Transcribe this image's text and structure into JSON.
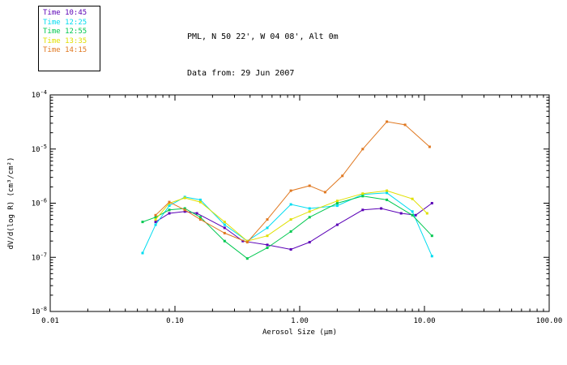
{
  "header": {
    "title_line1": "PML, N 50 22', W 04 08', Alt 0m",
    "title_line2": "Data from: 29 Jun 2007"
  },
  "legend": {
    "items": [
      {
        "label": "Time 10:45",
        "color": "#5a00b6"
      },
      {
        "label": "Time 12:25",
        "color": "#00dcf0"
      },
      {
        "label": "Time 12:55",
        "color": "#00c850"
      },
      {
        "label": "Time 13:35",
        "color": "#e0e000"
      },
      {
        "label": "Time 14:15",
        "color": "#e07820"
      }
    ]
  },
  "chart_data": {
    "type": "line",
    "title": "PML, N 50 22', W 04 08', Alt 0m",
    "subtitle": "Data from: 29 Jun 2007",
    "xlabel": "Aerosol Size (μm)",
    "ylabel": "dV/d(log R) (cm³/cm²)",
    "x_scale": "log",
    "y_scale": "log",
    "xlim": [
      0.01,
      100
    ],
    "ylim": [
      1e-08,
      0.0001
    ],
    "x_ticks": [
      "0.01",
      "0.10",
      "1.00",
      "10.00",
      "100.00"
    ],
    "y_tick_exponents": [
      -8,
      -7,
      -6,
      -5,
      -4
    ],
    "grid": false,
    "legend_position": "outside-top-left",
    "marker": "square",
    "series": [
      {
        "name": "Time 10:45",
        "color": "#5a00b6",
        "points": [
          [
            0.07,
            4.5e-07
          ],
          [
            0.09,
            6.5e-07
          ],
          [
            0.12,
            7e-07
          ],
          [
            0.15,
            6.5e-07
          ],
          [
            0.25,
            3.5e-07
          ],
          [
            0.35,
            2e-07
          ],
          [
            0.55,
            1.7e-07
          ],
          [
            0.85,
            1.4e-07
          ],
          [
            1.2,
            1.9e-07
          ],
          [
            2.0,
            4e-07
          ],
          [
            3.2,
            7.5e-07
          ],
          [
            4.5,
            8e-07
          ],
          [
            6.5,
            6.5e-07
          ],
          [
            8.5,
            6e-07
          ],
          [
            11.5,
            1e-06
          ]
        ]
      },
      {
        "name": "Time 12:25",
        "color": "#00dcf0",
        "points": [
          [
            0.055,
            1.2e-07
          ],
          [
            0.07,
            4e-07
          ],
          [
            0.09,
            9e-07
          ],
          [
            0.12,
            1.3e-06
          ],
          [
            0.16,
            1.15e-06
          ],
          [
            0.25,
            4e-07
          ],
          [
            0.38,
            2e-07
          ],
          [
            0.55,
            3.5e-07
          ],
          [
            0.85,
            9.5e-07
          ],
          [
            1.2,
            8e-07
          ],
          [
            2.0,
            9e-07
          ],
          [
            3.2,
            1.45e-06
          ],
          [
            5.0,
            1.55e-06
          ],
          [
            8.0,
            7e-07
          ],
          [
            11.5,
            1.05e-07
          ]
        ]
      },
      {
        "name": "Time 12:55",
        "color": "#00c850",
        "points": [
          [
            0.055,
            4.5e-07
          ],
          [
            0.07,
            5.5e-07
          ],
          [
            0.09,
            7.5e-07
          ],
          [
            0.12,
            8e-07
          ],
          [
            0.16,
            5.5e-07
          ],
          [
            0.25,
            2e-07
          ],
          [
            0.38,
            9.5e-08
          ],
          [
            0.55,
            1.5e-07
          ],
          [
            0.85,
            3e-07
          ],
          [
            1.2,
            5.5e-07
          ],
          [
            2.0,
            1e-06
          ],
          [
            3.2,
            1.35e-06
          ],
          [
            5.0,
            1.15e-06
          ],
          [
            8.0,
            6e-07
          ],
          [
            11.5,
            2.5e-07
          ]
        ]
      },
      {
        "name": "Time 13:35",
        "color": "#e0e000",
        "points": [
          [
            0.07,
            5e-07
          ],
          [
            0.09,
            1e-06
          ],
          [
            0.12,
            1.25e-06
          ],
          [
            0.16,
            1.05e-06
          ],
          [
            0.25,
            4.5e-07
          ],
          [
            0.38,
            2e-07
          ],
          [
            0.55,
            2.5e-07
          ],
          [
            0.85,
            5e-07
          ],
          [
            1.2,
            7e-07
          ],
          [
            2.0,
            1.1e-06
          ],
          [
            3.2,
            1.5e-06
          ],
          [
            5.0,
            1.7e-06
          ],
          [
            8.0,
            1.2e-06
          ],
          [
            10.5,
            6.5e-07
          ]
        ]
      },
      {
        "name": "Time 14:15",
        "color": "#e07820",
        "points": [
          [
            0.07,
            6e-07
          ],
          [
            0.09,
            1.05e-06
          ],
          [
            0.12,
            7.5e-07
          ],
          [
            0.16,
            5e-07
          ],
          [
            0.25,
            2.8e-07
          ],
          [
            0.38,
            1.9e-07
          ],
          [
            0.55,
            5e-07
          ],
          [
            0.85,
            1.7e-06
          ],
          [
            1.2,
            2.1e-06
          ],
          [
            1.6,
            1.6e-06
          ],
          [
            2.2,
            3.2e-06
          ],
          [
            3.2,
            1e-05
          ],
          [
            5.0,
            3.2e-05
          ],
          [
            7.0,
            2.8e-05
          ],
          [
            11.0,
            1.1e-05
          ]
        ]
      }
    ]
  }
}
